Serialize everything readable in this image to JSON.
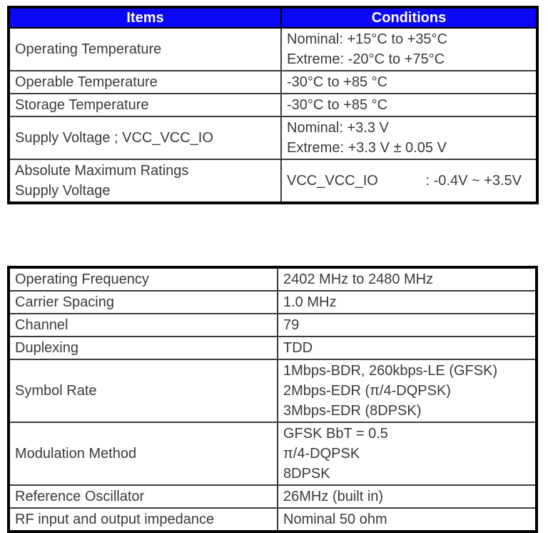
{
  "colors": {
    "header_bg": "#0c06f7",
    "header_text": "#ffffff",
    "body_text": "#3a3a3a",
    "border_outer": "#000000",
    "border_inner": "#3b3b3b",
    "page_bg": "#ffffff"
  },
  "tables": [
    {
      "name": "environmental-ratings",
      "columns": [
        "Items",
        "Conditions"
      ],
      "rows": [
        {
          "item": "Operating Temperature",
          "conditions": [
            "Nominal: +15°C to +35°C",
            "Extreme: -20°C to +75°C"
          ]
        },
        {
          "item": "Operable Temperature",
          "conditions": [
            "-30°C to +85 °C"
          ]
        },
        {
          "item": "Storage Temperature",
          "conditions": [
            "-30°C to +85 °C"
          ]
        },
        {
          "item": "Supply Voltage ; VCC_VCC_IO",
          "conditions": [
            "Nominal: +3.3 V",
            "Extreme: +3.3 V ± 0.05 V"
          ]
        },
        {
          "item": [
            "Absolute Maximum Ratings",
            "Supply Voltage"
          ],
          "conditions": [
            "VCC_VCC_IO            : -0.4V ~ +3.5V"
          ]
        }
      ]
    },
    {
      "name": "rf-characteristics",
      "columns": [],
      "rows": [
        {
          "item": "Operating Frequency",
          "conditions": [
            "2402 MHz to 2480 MHz"
          ]
        },
        {
          "item": "Carrier Spacing",
          "conditions": [
            "1.0 MHz"
          ]
        },
        {
          "item": "Channel",
          "conditions": [
            "79"
          ]
        },
        {
          "item": "Duplexing",
          "conditions": [
            "TDD"
          ]
        },
        {
          "item": "Symbol Rate",
          "conditions": [
            "1Mbps-BDR, 260kbps-LE (GFSK)",
            "2Mbps-EDR (π/4-DQPSK)",
            "3Mbps-EDR (8DPSK)"
          ]
        },
        {
          "item": "Modulation Method",
          "conditions": [
            "GFSK BbT = 0.5",
            "π/4-DQPSK",
            "8DPSK"
          ]
        },
        {
          "item": "Reference Oscillator",
          "conditions": [
            "26MHz (built in)"
          ]
        },
        {
          "item": "RF input and output impedance",
          "conditions": [
            "Nominal 50 ohm"
          ]
        }
      ]
    }
  ]
}
